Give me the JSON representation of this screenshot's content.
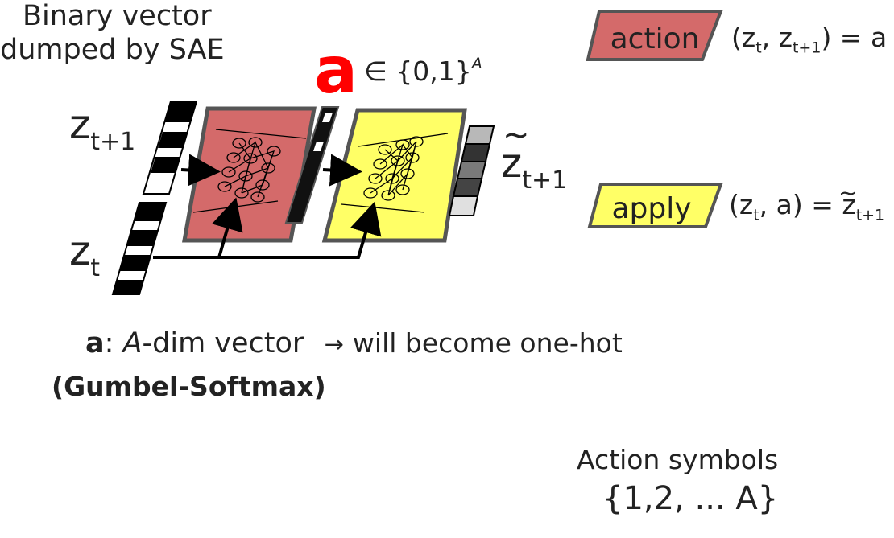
{
  "header": {
    "caption_line1": "Binary vector",
    "caption_line2": "dumped by SAE"
  },
  "vectors": {
    "zt1_base": "z",
    "zt1_sub": "t+1",
    "zt_base": "z",
    "zt_sub": "t",
    "zpred_base": "z",
    "zpred_tilde": "~",
    "zpred_sub": "t+1",
    "a_symbol": "a",
    "a_member": "∈ {0,1}",
    "a_sup": "A"
  },
  "legend": {
    "action_label": "action",
    "action_formula": {
      "open": "(z",
      "sub1": "t",
      "mid": ", z",
      "sub2": "t+1",
      "close": ") = a"
    },
    "apply_label": "apply",
    "apply_formula": {
      "open": "(z",
      "sub1": "t",
      "mid": ", a) = z",
      "tilde": "~",
      "sub2": "t+1"
    }
  },
  "notes": {
    "a_bold": "a",
    "a_colon": ": ",
    "a_italic": "A",
    "a_rest": "-dim vector",
    "arrow": "→",
    "onehot": "will become one-hot",
    "gumbel": "(Gumbel-Softmax)"
  },
  "footer": {
    "line1": "Action symbols",
    "line2": "{1,2, ... A}"
  },
  "colors": {
    "action_fill": "#d46a6a",
    "apply_fill": "#ffff66",
    "outline": "#555555",
    "a_red": "#ff0000",
    "text": "#222222"
  },
  "icons": [
    "arrow-icon",
    "neural-network-icon",
    "binary-vector-icon"
  ]
}
